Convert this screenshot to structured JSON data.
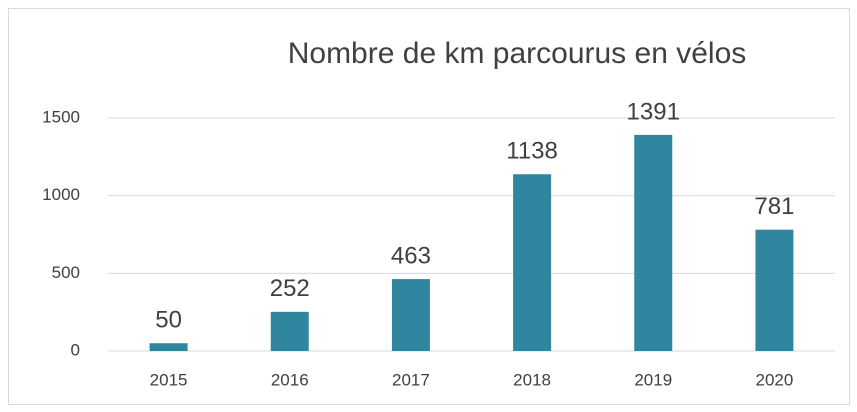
{
  "chart_data": {
    "type": "bar",
    "title": "Nombre de km parcourus en vélos",
    "categories": [
      "2015",
      "2016",
      "2017",
      "2018",
      "2019",
      "2020"
    ],
    "values": [
      50,
      252,
      463,
      1138,
      1391,
      781
    ],
    "color": "#31869f",
    "ylim": [
      0,
      1500
    ],
    "yticks": [
      0,
      500,
      1000,
      1500
    ],
    "grid": true
  }
}
